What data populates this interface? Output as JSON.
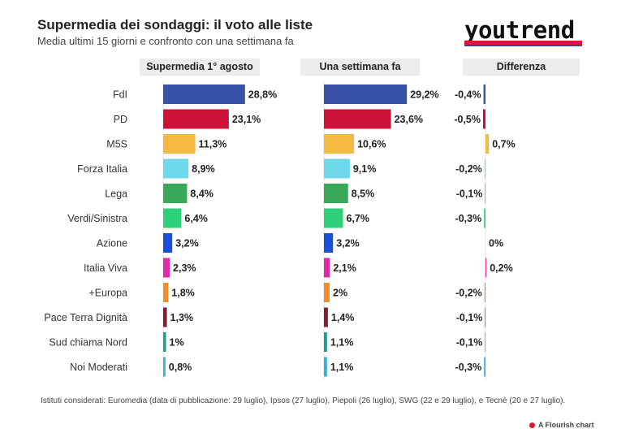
{
  "header": {
    "title": "Supermedia dei sondaggi: il voto alle liste",
    "subtitle": "Media ultimi 15 giorni e confronto con una settimana fa",
    "logo_text": "youtrend"
  },
  "columns": {
    "current": "Supermedia 1° agosto",
    "previous": "Una settimana fa",
    "difference": "Differenza"
  },
  "chart_data": {
    "type": "bar",
    "categories": [
      "FdI",
      "PD",
      "M5S",
      "Forza Italia",
      "Lega",
      "Verdi/Sinistra",
      "Azione",
      "Italia Viva",
      "+Europa",
      "Pace Terra Dignità",
      "Sud chiama Nord",
      "Noi Moderati"
    ],
    "colors": [
      "#3a51a8",
      "#cc1236",
      "#f4b942",
      "#6fd9ec",
      "#3aa85a",
      "#2fd07a",
      "#1b4fd8",
      "#e22aa8",
      "#f38c2c",
      "#8b1a2e",
      "#1f9e8f",
      "#34b5cf"
    ],
    "series": [
      {
        "name": "Supermedia 1° agosto",
        "values": [
          28.8,
          23.1,
          11.3,
          8.9,
          8.4,
          6.4,
          3.2,
          2.3,
          1.8,
          1.3,
          1.0,
          0.8
        ],
        "labels": [
          "28,8%",
          "23,1%",
          "11,3%",
          "8,9%",
          "8,4%",
          "6,4%",
          "3,2%",
          "2,3%",
          "1,8%",
          "1,3%",
          "1%",
          "0,8%"
        ]
      },
      {
        "name": "Una settimana fa",
        "values": [
          29.2,
          23.6,
          10.6,
          9.1,
          8.5,
          6.7,
          3.2,
          2.1,
          2.0,
          1.4,
          1.1,
          1.1
        ],
        "labels": [
          "29,2%",
          "23,6%",
          "10,6%",
          "9,1%",
          "8,5%",
          "6,7%",
          "3,2%",
          "2,1%",
          "2%",
          "1,4%",
          "1,1%",
          "1,1%"
        ]
      },
      {
        "name": "Differenza",
        "values": [
          -0.4,
          -0.5,
          0.7,
          -0.2,
          -0.1,
          -0.3,
          0,
          0.2,
          -0.2,
          -0.1,
          -0.1,
          -0.3
        ],
        "labels": [
          "-0,4%",
          "-0,5%",
          "0,7%",
          "-0,2%",
          "-0,1%",
          "-0,3%",
          "0%",
          "0,2%",
          "-0,2%",
          "-0,1%",
          "-0,1%",
          "-0,3%"
        ]
      }
    ]
  },
  "footer": {
    "note": "Istituti considerati: Euromedia (data di pubblicazione: 29 luglio), Ipsos (27 luglio), Piepoli (26 luglio), SWG (22 e 29 luglio), e Tecnè (20 e 27 luglio).",
    "credit": "A Flourish chart"
  }
}
